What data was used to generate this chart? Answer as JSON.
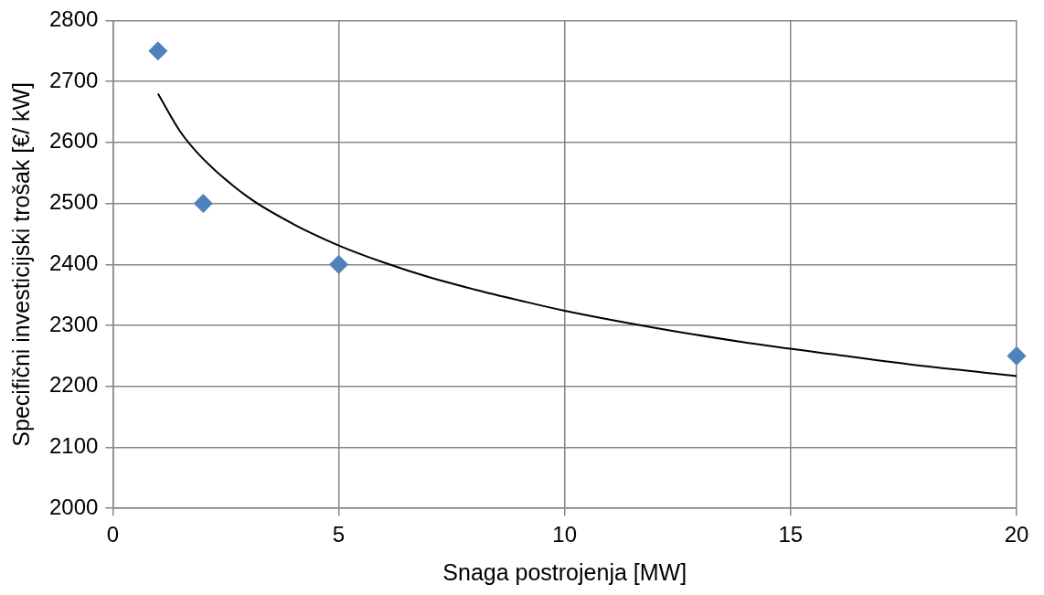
{
  "chart_data": {
    "type": "scatter",
    "xlabel": "Snaga postrojenja [MW]",
    "ylabel": "Specifični investicijski trošak [€/ kW]",
    "xlim": [
      0,
      20
    ],
    "xticks": [
      0,
      5,
      10,
      15,
      20
    ],
    "ylim": [
      2000,
      2800
    ],
    "yticks": [
      2000,
      2100,
      2200,
      2300,
      2400,
      2500,
      2600,
      2700,
      2800
    ],
    "grid": true,
    "legend": false,
    "series": [
      {
        "type": "scatter",
        "color": "#4f81bd",
        "marker": "diamond",
        "x": [
          1,
          2,
          5,
          20
        ],
        "values": [
          2750,
          2500,
          2400,
          2250
        ]
      },
      {
        "type": "line",
        "color": "#000000",
        "marker": "none",
        "line_style": "solid",
        "x": [
          1,
          1.5,
          2,
          3,
          4,
          5,
          6,
          7,
          8,
          9,
          10,
          12,
          14,
          16,
          18,
          20
        ],
        "values": [
          2680,
          2617,
          2573,
          2510,
          2466,
          2431,
          2403,
          2379,
          2359,
          2341,
          2324,
          2296,
          2272,
          2252,
          2233,
          2217
        ]
      }
    ]
  }
}
